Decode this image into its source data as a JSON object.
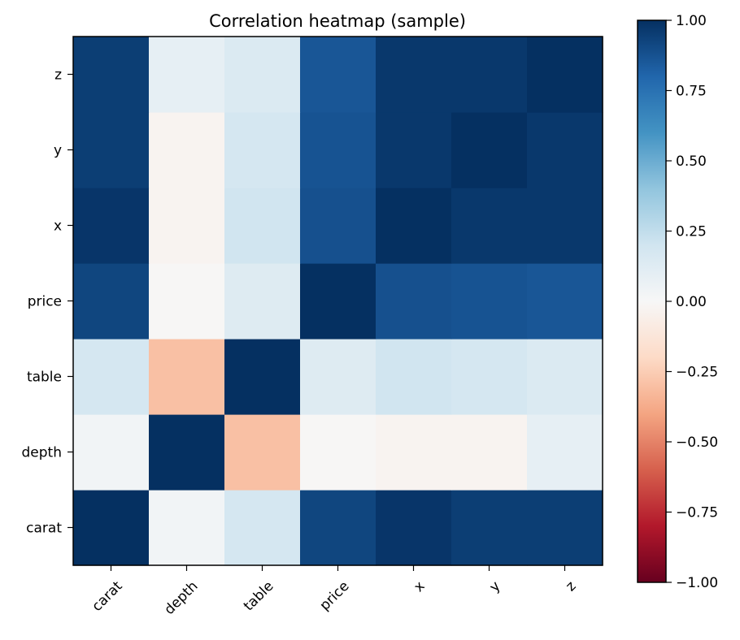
{
  "chart_data": {
    "type": "heatmap",
    "title": "Correlation heatmap (sample)",
    "xlabel": "",
    "ylabel": "",
    "x_categories": [
      "carat",
      "depth",
      "table",
      "price",
      "x",
      "y",
      "z"
    ],
    "y_categories": [
      "carat",
      "depth",
      "table",
      "price",
      "x",
      "y",
      "z"
    ],
    "matrix": [
      [
        1.0,
        0.03,
        0.18,
        0.92,
        0.98,
        0.95,
        0.95
      ],
      [
        0.03,
        1.0,
        -0.3,
        -0.01,
        -0.03,
        -0.03,
        0.09
      ],
      [
        0.18,
        -0.3,
        1.0,
        0.13,
        0.2,
        0.18,
        0.15
      ],
      [
        0.92,
        -0.01,
        0.13,
        1.0,
        0.88,
        0.87,
        0.86
      ],
      [
        0.98,
        -0.03,
        0.2,
        0.88,
        1.0,
        0.97,
        0.97
      ],
      [
        0.95,
        -0.03,
        0.18,
        0.87,
        0.97,
        1.0,
        0.97
      ],
      [
        0.95,
        0.09,
        0.15,
        0.86,
        0.97,
        0.97,
        1.0
      ]
    ],
    "colormap": "RdBu",
    "vmin": -1.0,
    "vmax": 1.0,
    "colorbar": {
      "ticks": [
        1.0,
        0.75,
        0.5,
        0.25,
        0.0,
        -0.25,
        -0.5,
        -0.75,
        -1.0
      ],
      "tick_labels": [
        "1.00",
        "0.75",
        "0.50",
        "0.25",
        "0.00",
        "−0.25",
        "−0.50",
        "−0.75",
        "−1.00"
      ]
    },
    "x_tick_rotation_deg": 45,
    "grid": false,
    "colorbar_placement": "right"
  }
}
